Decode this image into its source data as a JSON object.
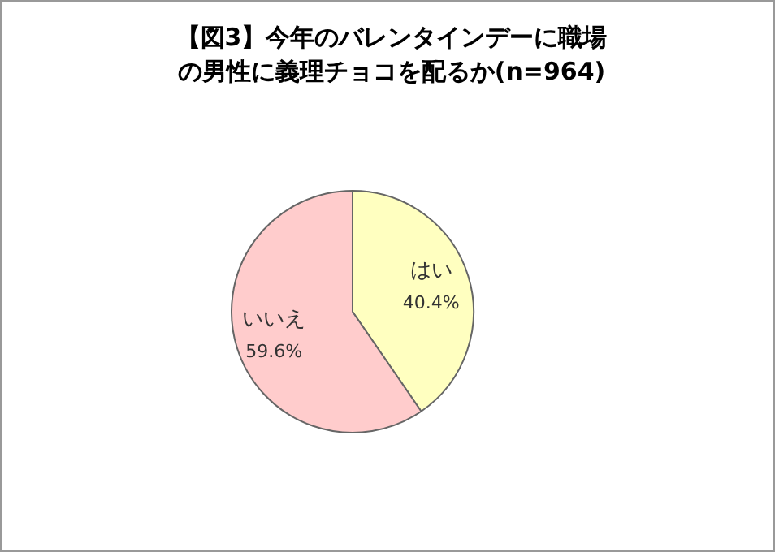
{
  "chart_data": {
    "type": "pie",
    "title": "【図3】今年のバレンタインデーに職場の男性に義理チョコを配るか(n=964)",
    "categories": [
      "はい",
      "いいえ"
    ],
    "values": [
      40.4,
      59.6
    ],
    "colors": [
      "#ffffc0",
      "#ffcccc"
    ],
    "value_labels": [
      "40.4%",
      "59.6%"
    ],
    "legend": false
  }
}
